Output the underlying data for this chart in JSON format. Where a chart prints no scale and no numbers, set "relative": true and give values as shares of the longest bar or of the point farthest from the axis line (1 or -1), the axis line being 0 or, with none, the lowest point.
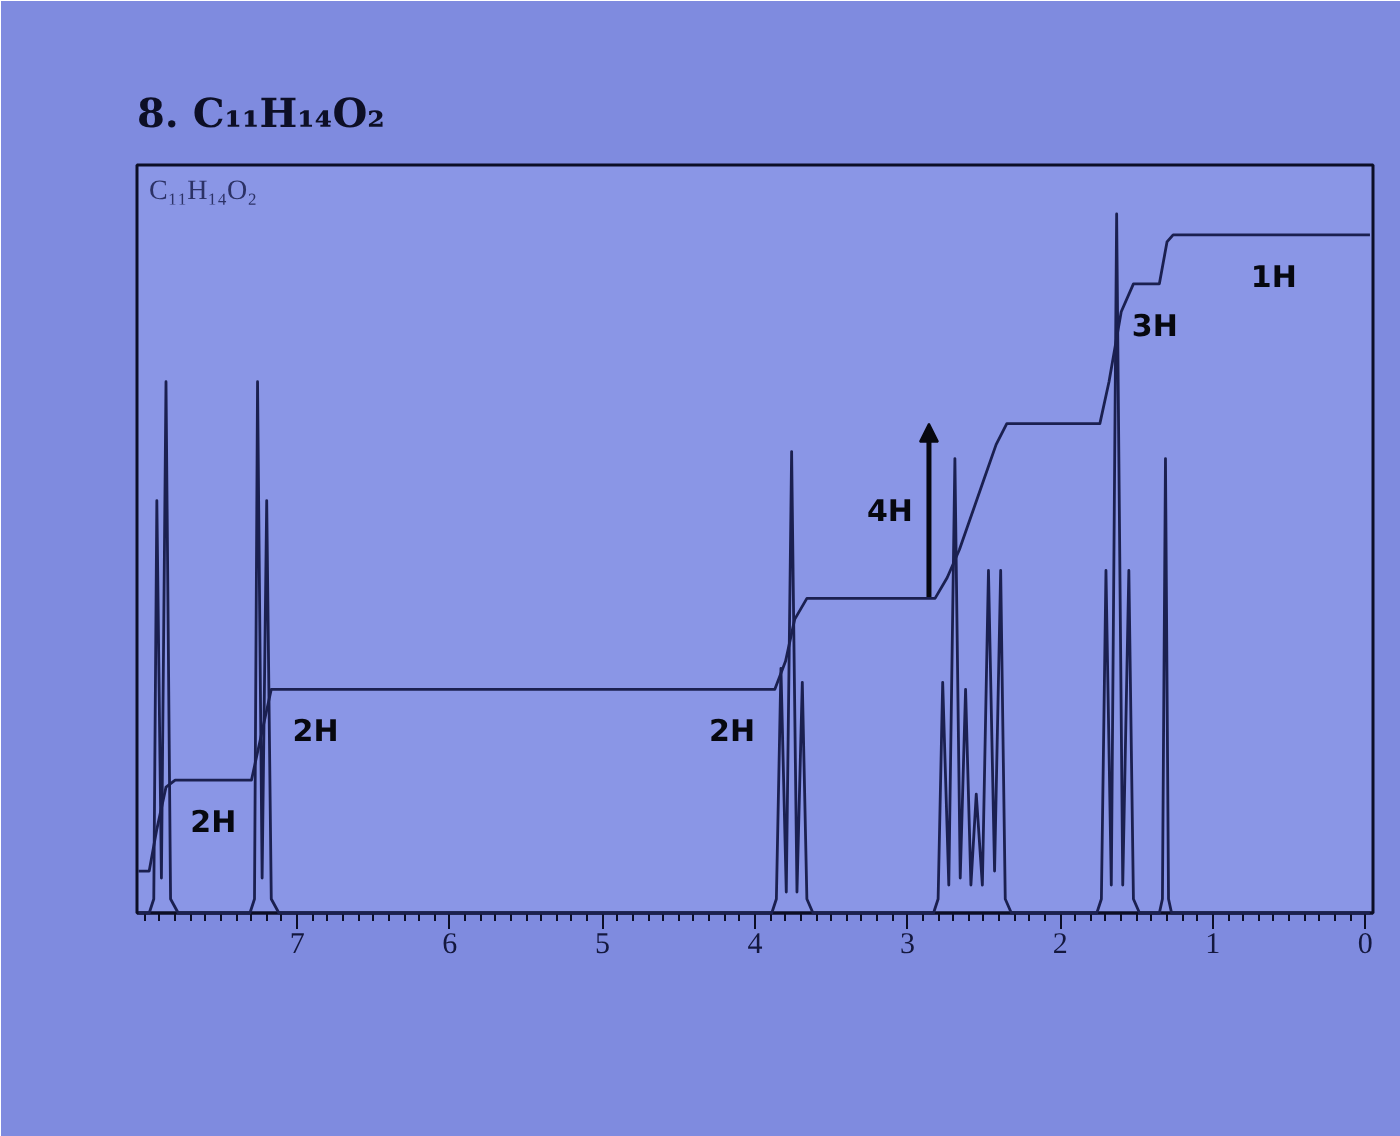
{
  "chart_data": {
    "type": "line",
    "title": "8. C₁₁H₁₄O₂",
    "annotations": [
      "C₁₁H₁₄O₂",
      {
        "text": "2H",
        "x": 7.55,
        "y": 0.19
      },
      {
        "text": "2H",
        "x": 6.88,
        "y": 0.32
      },
      {
        "text": "2H",
        "x": 4.15,
        "y": 0.32
      },
      {
        "text": "4H",
        "x": 2.86,
        "y": 0.45
      },
      {
        "text": "3H",
        "x": 1.38,
        "y": 0.9
      },
      {
        "text": "1H",
        "x": 0.6,
        "y": 0.97
      }
    ],
    "relative": true,
    "xlim": [
      8.05,
      -0.05
    ],
    "xticks": [
      {
        "value": 8.0,
        "label": null
      },
      {
        "value": 7.9,
        "label": null
      },
      {
        "value": 7.8,
        "label": null
      },
      {
        "value": 7.7,
        "label": null
      },
      {
        "value": 7.6,
        "label": null
      },
      {
        "value": 7.5,
        "label": null
      },
      {
        "value": 7.4,
        "label": null
      },
      {
        "value": 7.3,
        "label": null
      },
      {
        "value": 7.2,
        "label": null
      },
      {
        "value": 7.1,
        "label": null
      },
      7,
      {
        "value": 6.9,
        "label": null
      },
      {
        "value": 6.8,
        "label": null
      },
      {
        "value": 6.7,
        "label": null
      },
      {
        "value": 6.6,
        "label": null
      },
      {
        "value": 6.5,
        "label": null
      },
      {
        "value": 6.4,
        "label": null
      },
      {
        "value": 6.3,
        "label": null
      },
      {
        "value": 6.2,
        "label": null
      },
      {
        "value": 6.1,
        "label": null
      },
      6,
      {
        "value": 5.9,
        "label": null
      },
      {
        "value": 5.8,
        "label": null
      },
      {
        "value": 5.7,
        "label": null
      },
      {
        "value": 5.6,
        "label": null
      },
      {
        "value": 5.5,
        "label": null
      },
      {
        "value": 5.4,
        "label": null
      },
      {
        "value": 5.3,
        "label": null
      },
      {
        "value": 5.2,
        "label": null
      },
      {
        "value": 5.1,
        "label": null
      },
      5,
      {
        "value": 4.9,
        "label": null
      },
      {
        "value": 4.8,
        "label": null
      },
      {
        "value": 4.7,
        "label": null
      },
      {
        "value": 4.6,
        "label": null
      },
      {
        "value": 4.5,
        "label": null
      },
      {
        "value": 4.4,
        "label": null
      },
      {
        "value": 4.3,
        "label": null
      },
      {
        "value": 4.2,
        "label": null
      },
      {
        "value": 4.1,
        "label": null
      },
      4,
      {
        "value": 3.9,
        "label": null
      },
      {
        "value": 3.8,
        "label": null
      },
      {
        "value": 3.7,
        "label": null
      },
      {
        "value": 3.6,
        "label": null
      },
      {
        "value": 3.5,
        "label": null
      },
      {
        "value": 3.4,
        "label": null
      },
      {
        "value": 3.3,
        "label": null
      },
      {
        "value": 3.2,
        "label": null
      },
      {
        "value": 3.1,
        "label": null
      },
      3,
      {
        "value": 2.9,
        "label": null
      },
      {
        "value": 2.8,
        "label": null
      },
      {
        "value": 2.7,
        "label": null
      },
      {
        "value": 2.6,
        "label": null
      },
      {
        "value": 2.5,
        "label": null
      },
      {
        "value": 2.4,
        "label": null
      },
      {
        "value": 2.3,
        "label": null
      },
      {
        "value": 2.2,
        "label": null
      },
      {
        "value": 2.1,
        "label": null
      },
      2,
      {
        "value": 1.9,
        "label": null
      },
      {
        "value": 1.8,
        "label": null
      },
      {
        "value": 1.7,
        "label": null
      },
      {
        "value": 1.6,
        "label": null
      },
      {
        "value": 1.5,
        "label": null
      },
      {
        "value": 1.4,
        "label": null
      },
      {
        "value": 1.3,
        "label": null
      },
      {
        "value": 1.2,
        "label": null
      },
      {
        "value": 1.1,
        "label": null
      },
      1,
      {
        "value": 0.9,
        "label": null
      },
      {
        "value": 0.8,
        "label": null
      },
      {
        "value": 0.7,
        "label": null
      },
      {
        "value": 0.6,
        "label": null
      },
      {
        "value": 0.5,
        "label": null
      },
      {
        "value": 0.4,
        "label": null
      },
      {
        "value": 0.3,
        "label": null
      },
      {
        "value": 0.2,
        "label": null
      },
      {
        "value": 0.1,
        "label": null
      },
      0
    ],
    "line_style": "solid",
    "series": [
      {
        "color": "#1b2050",
        "x": [
          8.04,
          7.97,
          7.94,
          7.92,
          7.89,
          7.86,
          7.83,
          7.78,
          7.31,
          7.28,
          7.26,
          7.23,
          7.2,
          7.17,
          7.12,
          3.89,
          3.86,
          3.83,
          3.795,
          3.76,
          3.725,
          3.69,
          3.66,
          3.62,
          2.83,
          2.8,
          2.77,
          2.73,
          2.69,
          2.655,
          2.62,
          2.585,
          2.55,
          2.51,
          2.47,
          2.43,
          2.39,
          2.36,
          2.32,
          1.76,
          1.73,
          1.7,
          1.665,
          1.63,
          1.59,
          1.55,
          1.52,
          1.48,
          1.35,
          1.33,
          1.31,
          1.29,
          1.27,
          -0.03
        ],
        "values": [
          0,
          0,
          0.02,
          0.59,
          0.05,
          0.76,
          0.02,
          0,
          0,
          0.02,
          0.76,
          0.05,
          0.59,
          0.02,
          0,
          0,
          0.02,
          0.35,
          0.03,
          0.66,
          0.03,
          0.33,
          0.02,
          0,
          0,
          0.02,
          0.33,
          0.04,
          0.65,
          0.05,
          0.32,
          0.04,
          0.17,
          0.04,
          0.49,
          0.06,
          0.49,
          0.02,
          0,
          0,
          0.02,
          0.49,
          0.04,
          1.0,
          0.04,
          0.49,
          0.02,
          0,
          0,
          0.02,
          0.65,
          0.02,
          0,
          0
        ]
      },
      {
        "color": "#1b2050",
        "x": [
          8.04,
          7.97,
          7.92,
          7.86,
          7.8,
          7.3,
          7.24,
          7.17,
          3.87,
          3.8,
          3.74,
          3.66,
          2.82,
          2.74,
          2.66,
          2.58,
          2.5,
          2.42,
          2.35,
          1.74,
          1.68,
          1.6,
          1.52,
          1.35,
          1.3,
          1.26,
          -0.03
        ],
        "values": [
          0.06,
          0.06,
          0.12,
          0.18,
          0.19,
          0.19,
          0.25,
          0.32,
          0.32,
          0.36,
          0.42,
          0.45,
          0.45,
          0.48,
          0.52,
          0.57,
          0.62,
          0.67,
          0.7,
          0.7,
          0.76,
          0.86,
          0.9,
          0.9,
          0.96,
          0.97,
          0.97
        ]
      }
    ]
  }
}
